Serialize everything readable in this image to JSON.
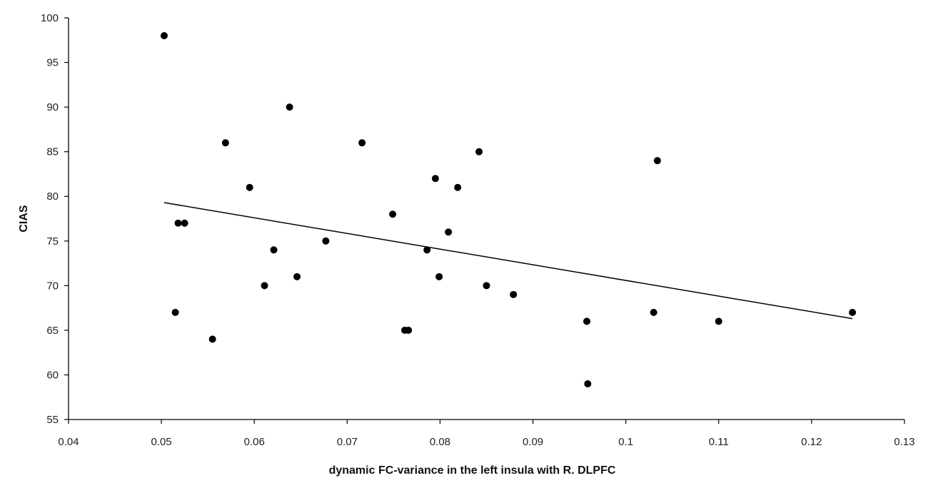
{
  "chart_data": {
    "type": "scatter",
    "title": "",
    "xlabel": "dynamic FC-variance in the left insula with R. DLPFC",
    "ylabel": "CIAS",
    "xlim": [
      0.04,
      0.13
    ],
    "ylim": [
      55,
      100
    ],
    "xticks": [
      0.04,
      0.05,
      0.06,
      0.07,
      0.08,
      0.09,
      0.1,
      0.11,
      0.12,
      0.13
    ],
    "xtick_labels": [
      "0.04",
      "0.05",
      "0.06",
      "0.07",
      "0.08",
      "0.09",
      "0.1",
      "0.11",
      "0.12",
      "0.13"
    ],
    "yticks": [
      55,
      60,
      65,
      70,
      75,
      80,
      85,
      90,
      95,
      100
    ],
    "ytick_labels": [
      "55",
      "60",
      "65",
      "70",
      "75",
      "80",
      "85",
      "90",
      "95",
      "100"
    ],
    "grid": false,
    "legend": "none",
    "series": [
      {
        "points": [
          {
            "x": 0.0503,
            "y": 98
          },
          {
            "x": 0.0515,
            "y": 67
          },
          {
            "x": 0.0518,
            "y": 77
          },
          {
            "x": 0.0525,
            "y": 77
          },
          {
            "x": 0.0555,
            "y": 64
          },
          {
            "x": 0.0569,
            "y": 86
          },
          {
            "x": 0.0595,
            "y": 81
          },
          {
            "x": 0.0611,
            "y": 70
          },
          {
            "x": 0.0621,
            "y": 74
          },
          {
            "x": 0.0638,
            "y": 90
          },
          {
            "x": 0.0646,
            "y": 71
          },
          {
            "x": 0.0677,
            "y": 75
          },
          {
            "x": 0.0716,
            "y": 86
          },
          {
            "x": 0.0749,
            "y": 78
          },
          {
            "x": 0.0762,
            "y": 65
          },
          {
            "x": 0.0766,
            "y": 65
          },
          {
            "x": 0.0786,
            "y": 74
          },
          {
            "x": 0.0795,
            "y": 82
          },
          {
            "x": 0.0799,
            "y": 71
          },
          {
            "x": 0.0809,
            "y": 76
          },
          {
            "x": 0.0819,
            "y": 81
          },
          {
            "x": 0.0842,
            "y": 85
          },
          {
            "x": 0.085,
            "y": 70
          },
          {
            "x": 0.0879,
            "y": 69
          },
          {
            "x": 0.0958,
            "y": 66
          },
          {
            "x": 0.0959,
            "y": 59
          },
          {
            "x": 0.103,
            "y": 67
          },
          {
            "x": 0.1034,
            "y": 84
          },
          {
            "x": 0.11,
            "y": 66
          },
          {
            "x": 0.1244,
            "y": 67
          }
        ]
      }
    ],
    "trendline": {
      "type": "linear",
      "x": [
        0.0503,
        0.1244
      ],
      "y": [
        79.3,
        66.3
      ]
    },
    "colors": {
      "points": "#000000",
      "trendline": "#000000",
      "axes": "#000000"
    }
  }
}
